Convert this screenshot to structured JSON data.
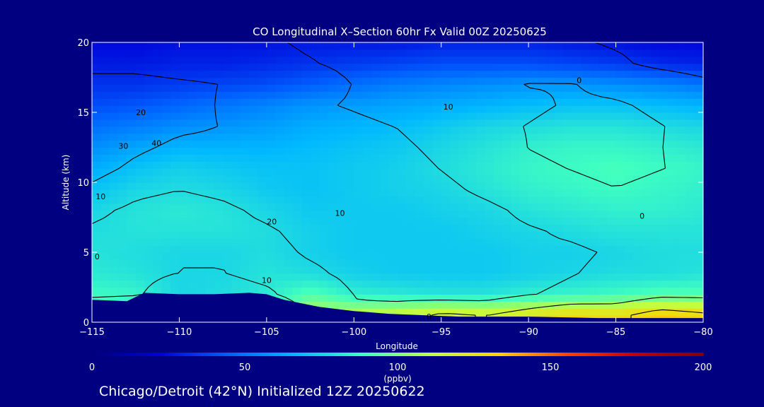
{
  "chart_data": {
    "type": "heatmap",
    "title": "CO Longitudinal X–Section 60hr  Fx Valid 00Z 20250625",
    "xlabel": "Longitude",
    "ylabel": "Altitude (km)",
    "xlim": [
      -115,
      -80
    ],
    "ylim": [
      0,
      20
    ],
    "x_ticks": [
      -115,
      -110,
      -105,
      -100,
      -95,
      -90,
      -85,
      -80
    ],
    "x_tick_labels": [
      "−115",
      "−110",
      "−105",
      "−100",
      "−95",
      "−90",
      "−85",
      "−80"
    ],
    "y_ticks": [
      0,
      5,
      10,
      15,
      20
    ],
    "y_tick_labels": [
      "0",
      "5",
      "10",
      "15",
      "20"
    ],
    "colorbar": {
      "min": 0,
      "max": 200,
      "ticks": [
        0,
        50,
        100,
        150,
        200
      ],
      "tick_labels": [
        "0",
        "50",
        "100",
        "150",
        "200"
      ],
      "label": "(ppbv)",
      "colors": [
        "#00007a",
        "#0000d8",
        "#0060ff",
        "#00b8ff",
        "#40ffc0",
        "#c0ff40",
        "#ffd000",
        "#ff4000",
        "#c00000",
        "#800000"
      ]
    },
    "field_longitudes": [
      -115,
      -112.5,
      -110,
      -107.5,
      -105,
      -102.5,
      -100,
      -97.5,
      -95,
      -92.5,
      -90,
      -87.5,
      -85,
      -82.5,
      -80
    ],
    "field_altitudes": [
      0.5,
      2,
      3.5,
      5,
      6.5,
      8,
      9.5,
      11,
      12.5,
      14,
      15.5,
      17,
      18.5,
      20
    ],
    "co_ppbv": [
      [
        90,
        88,
        78,
        80,
        90,
        112,
        112,
        115,
        122,
        120,
        125,
        130,
        128,
        135,
        132
      ],
      [
        88,
        86,
        76,
        78,
        82,
        92,
        84,
        82,
        80,
        80,
        84,
        86,
        88,
        92,
        92
      ],
      [
        82,
        80,
        76,
        76,
        80,
        78,
        74,
        72,
        72,
        72,
        74,
        76,
        78,
        78,
        80
      ],
      [
        80,
        78,
        76,
        76,
        78,
        74,
        72,
        72,
        72,
        72,
        74,
        74,
        76,
        78,
        78
      ],
      [
        78,
        80,
        80,
        80,
        78,
        74,
        72,
        72,
        72,
        74,
        76,
        78,
        80,
        80,
        80
      ],
      [
        76,
        80,
        82,
        80,
        76,
        72,
        72,
        72,
        74,
        76,
        80,
        82,
        84,
        84,
        82
      ],
      [
        70,
        76,
        78,
        76,
        72,
        70,
        72,
        74,
        76,
        80,
        84,
        86,
        88,
        86,
        84
      ],
      [
        64,
        70,
        74,
        72,
        70,
        70,
        72,
        74,
        78,
        82,
        86,
        88,
        90,
        88,
        86
      ],
      [
        56,
        62,
        66,
        66,
        66,
        68,
        70,
        72,
        76,
        80,
        84,
        86,
        86,
        84,
        82
      ],
      [
        48,
        52,
        56,
        58,
        60,
        64,
        66,
        68,
        72,
        76,
        78,
        80,
        80,
        78,
        76
      ],
      [
        40,
        42,
        46,
        50,
        54,
        58,
        60,
        62,
        64,
        66,
        68,
        70,
        70,
        68,
        66
      ],
      [
        34,
        34,
        36,
        38,
        40,
        44,
        48,
        52,
        54,
        56,
        58,
        58,
        56,
        54,
        50
      ],
      [
        28,
        28,
        30,
        30,
        32,
        34,
        36,
        38,
        40,
        40,
        40,
        38,
        36,
        32,
        30
      ],
      [
        24,
        24,
        26,
        26,
        26,
        28,
        28,
        28,
        30,
        30,
        30,
        28,
        26,
        24,
        24
      ]
    ],
    "terrain": [
      [
        -115,
        1.6
      ],
      [
        -113,
        1.5
      ],
      [
        -112,
        2.1
      ],
      [
        -110,
        2.0
      ],
      [
        -108,
        2.0
      ],
      [
        -106,
        2.1
      ],
      [
        -105,
        2.0
      ],
      [
        -104,
        1.6
      ],
      [
        -102,
        1.1
      ],
      [
        -100,
        0.8
      ],
      [
        -98,
        0.6
      ],
      [
        -96,
        0.5
      ],
      [
        -94,
        0.4
      ],
      [
        -90,
        0.4
      ],
      [
        -86,
        0.3
      ],
      [
        -82,
        0.3
      ],
      [
        -80,
        0.3
      ]
    ],
    "contour_labels": [
      {
        "text": "20",
        "x": -112.2,
        "y": 15.0
      },
      {
        "text": "30",
        "x": -113.2,
        "y": 12.6
      },
      {
        "text": "40",
        "x": -111.3,
        "y": 12.8
      },
      {
        "text": "10",
        "x": -114.5,
        "y": 9.0
      },
      {
        "text": "0",
        "x": -114.7,
        "y": 4.7
      },
      {
        "text": "20",
        "x": -104.7,
        "y": 7.2
      },
      {
        "text": "10",
        "x": -100.8,
        "y": 7.8
      },
      {
        "text": "10",
        "x": -94.6,
        "y": 15.4
      },
      {
        "text": "10",
        "x": -105.0,
        "y": 3.0
      },
      {
        "text": "0",
        "x": -87.1,
        "y": 17.3
      },
      {
        "text": "0",
        "x": -83.5,
        "y": 7.6
      },
      {
        "text": "0",
        "x": -95.7,
        "y": 0.4
      }
    ]
  },
  "footer": {
    "label": "Chicago/Detroit (42°N) Initialized 12Z 20250622"
  }
}
